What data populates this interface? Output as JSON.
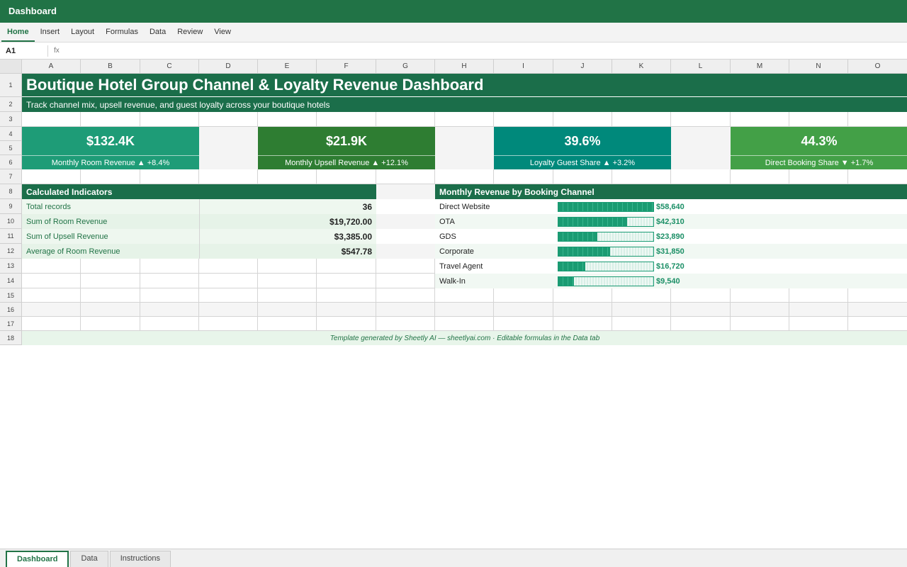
{
  "window": {
    "title": "Dashboard"
  },
  "ribbon": {
    "tabs": [
      "Home",
      "Insert",
      "Layout",
      "Formulas",
      "Data",
      "Review",
      "View"
    ],
    "active": 0
  },
  "formula_bar": {
    "cell_ref": "A1",
    "fx_label": "fx",
    "value": ""
  },
  "grid": {
    "columns": [
      "A",
      "B",
      "C",
      "D",
      "E",
      "F",
      "G",
      "H",
      "I",
      "J",
      "K",
      "L",
      "M",
      "N",
      "O"
    ],
    "rows": [
      "1",
      "2",
      "3",
      "4",
      "5",
      "6",
      "7",
      "8",
      "9",
      "10",
      "11",
      "12",
      "13",
      "14",
      "15",
      "16",
      "17",
      "18"
    ]
  },
  "dashboard": {
    "title": "Boutique Hotel Group Channel & Loyalty Revenue Dashboard",
    "subtitle": "Track channel mix, upsell revenue, and guest loyalty across your boutique hotels",
    "kpis": [
      {
        "value": "$132.4K",
        "label": "Monthly Room Revenue ▲ +8.4%",
        "color": "#1e9c77"
      },
      {
        "value": "$21.9K",
        "label": "Monthly Upsell Revenue ▲ +12.1%",
        "color": "#2e7d32"
      },
      {
        "value": "39.6%",
        "label": "Loyalty Guest Share ▲ +3.2%",
        "color": "#00897b"
      },
      {
        "value": "44.3%",
        "label": "Direct Booking Share ▼ +1.7%",
        "color": "#43a047"
      }
    ],
    "indicators": {
      "header": "Calculated Indicators",
      "items": [
        {
          "label": "Total records",
          "value": "36"
        },
        {
          "label": "Sum of Room Revenue",
          "value": "$19,720.00"
        },
        {
          "label": "Sum of Upsell Revenue",
          "value": "$3,385.00"
        },
        {
          "label": "Average of Room Revenue",
          "value": "$547.78"
        }
      ]
    },
    "channels": {
      "header": "Monthly Revenue by Booking Channel",
      "items": [
        {
          "label": "Direct Website",
          "value": 58640,
          "display": "$58,640"
        },
        {
          "label": "OTA",
          "value": 42310,
          "display": "$42,310"
        },
        {
          "label": "GDS",
          "value": 23890,
          "display": "$23,890"
        },
        {
          "label": "Corporate",
          "value": 31850,
          "display": "$31,850"
        },
        {
          "label": "Travel Agent",
          "value": 16720,
          "display": "$16,720"
        },
        {
          "label": "Walk-In",
          "value": 9540,
          "display": "$9,540"
        }
      ]
    },
    "footer": "Template generated by Sheetly AI — sheetlyai.com · Editable formulas in the Data tab"
  },
  "sheet_tabs": {
    "tabs": [
      "Dashboard",
      "Data",
      "Instructions"
    ],
    "active": 0
  }
}
